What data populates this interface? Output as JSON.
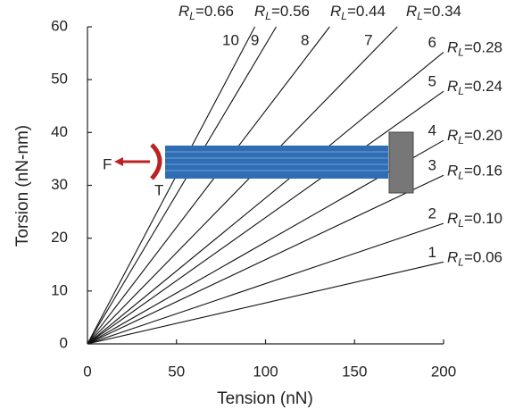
{
  "chart_data": {
    "type": "line",
    "x_label": "Tension (nN)",
    "y_label": "Torsion (nN-nm)",
    "xlim": [
      0,
      200
    ],
    "ylim": [
      0,
      60
    ],
    "xticks": [
      0,
      50,
      100,
      150,
      200
    ],
    "yticks": [
      0,
      10,
      20,
      30,
      40,
      50,
      60
    ],
    "color": "#111111",
    "r_symbol": "R",
    "r_subscript": "L",
    "series": [
      {
        "name": "1",
        "rl": "=0.06",
        "x": [
          0,
          200
        ],
        "values": [
          0,
          15.5
        ]
      },
      {
        "name": "2",
        "rl": "=0.10",
        "x": [
          0,
          200
        ],
        "values": [
          0,
          22.8
        ]
      },
      {
        "name": "3",
        "rl": "=0.16",
        "x": [
          0,
          200
        ],
        "values": [
          0,
          31.9
        ]
      },
      {
        "name": "4",
        "rl": "=0.20",
        "x": [
          0,
          200
        ],
        "values": [
          0,
          38.5
        ]
      },
      {
        "name": "5",
        "rl": "=0.24",
        "x": [
          0,
          200
        ],
        "values": [
          0,
          47.8
        ]
      },
      {
        "name": "6",
        "rl": "=0.28",
        "x": [
          0,
          200
        ],
        "values": [
          0,
          55.2
        ]
      },
      {
        "name": "7",
        "rl": "=0.34",
        "x": [
          0,
          174
        ],
        "values": [
          0,
          60
        ]
      },
      {
        "name": "8",
        "rl": "=0.44",
        "x": [
          0,
          136
        ],
        "values": [
          0,
          60
        ]
      },
      {
        "name": "9",
        "rl": "=0.56",
        "x": [
          0,
          106
        ],
        "values": [
          0,
          60
        ]
      },
      {
        "name": "10",
        "rl": "=0.66",
        "x": [
          0,
          94
        ],
        "values": [
          0,
          60
        ]
      }
    ],
    "inset": {
      "force": "F",
      "torque": "T"
    }
  }
}
